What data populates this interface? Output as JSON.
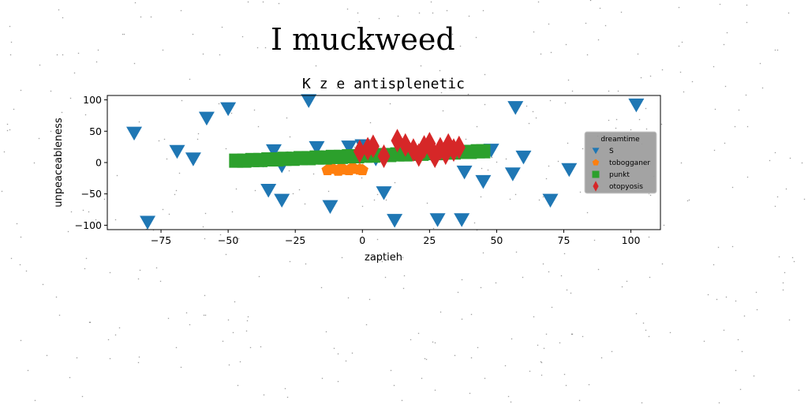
{
  "page": {
    "title": "I muckweed"
  },
  "chart_data": {
    "type": "scatter",
    "title": "K z e antisplenetic",
    "xlabel": "zaptieh",
    "ylabel": "unpeaceableness",
    "xlim": [
      -95,
      111
    ],
    "ylim": [
      -107,
      107
    ],
    "xticks": [
      -75,
      -50,
      -25,
      0,
      25,
      50,
      75,
      100
    ],
    "yticks": [
      -100,
      -50,
      0,
      50,
      100
    ],
    "grid": false,
    "legend": {
      "title": "dreamtime",
      "placement": "right"
    },
    "series": [
      {
        "name": "S",
        "marker": "triangle-down",
        "color": "#1f77b4",
        "points": [
          [
            -85,
            47
          ],
          [
            -80,
            -95
          ],
          [
            -69,
            18
          ],
          [
            -63,
            6
          ],
          [
            -58,
            71
          ],
          [
            -50,
            86
          ],
          [
            -37,
            4
          ],
          [
            -35,
            -44
          ],
          [
            -33,
            19
          ],
          [
            -30,
            -60
          ],
          [
            -30,
            -5
          ],
          [
            -20,
            99
          ],
          [
            -17,
            24
          ],
          [
            -12,
            -70
          ],
          [
            -5,
            25
          ],
          [
            0,
            27
          ],
          [
            5,
            6
          ],
          [
            8,
            -48
          ],
          [
            12,
            -92
          ],
          [
            28,
            -91
          ],
          [
            37,
            -91
          ],
          [
            38,
            -15
          ],
          [
            45,
            -30
          ],
          [
            48,
            20
          ],
          [
            56,
            -18
          ],
          [
            57,
            88
          ],
          [
            60,
            9
          ],
          [
            70,
            -60
          ],
          [
            77,
            -11
          ],
          [
            102,
            92
          ]
        ]
      },
      {
        "name": "tobogganer",
        "marker": "pentagon",
        "color": "#ff7f0e",
        "points": [
          [
            -13,
            -12
          ],
          [
            -11,
            -10
          ],
          [
            -9,
            -13
          ],
          [
            -7,
            -11
          ],
          [
            -5,
            -12
          ],
          [
            -3,
            -10
          ],
          [
            -1,
            -11
          ],
          [
            0,
            -12
          ],
          [
            -12,
            -9
          ],
          [
            -8,
            -9
          ],
          [
            -4,
            -9
          ]
        ]
      },
      {
        "name": "punkt",
        "marker": "square",
        "color": "#2ca02c",
        "points": [
          [
            -47,
            3
          ],
          [
            -44,
            3
          ],
          [
            -41,
            4
          ],
          [
            -38,
            4
          ],
          [
            -35,
            5
          ],
          [
            -32,
            5
          ],
          [
            -29,
            6
          ],
          [
            -26,
            6
          ],
          [
            -23,
            7
          ],
          [
            -20,
            7
          ],
          [
            -17,
            8
          ],
          [
            -14,
            8
          ],
          [
            -11,
            9
          ],
          [
            -8,
            9
          ],
          [
            -5,
            10
          ],
          [
            -2,
            10
          ],
          [
            1,
            11
          ],
          [
            4,
            11
          ],
          [
            7,
            12
          ],
          [
            10,
            12
          ],
          [
            13,
            13
          ],
          [
            16,
            13
          ],
          [
            19,
            14
          ],
          [
            22,
            14
          ],
          [
            25,
            15
          ],
          [
            28,
            15
          ],
          [
            31,
            16
          ],
          [
            34,
            16
          ],
          [
            37,
            17
          ],
          [
            40,
            17
          ],
          [
            43,
            18
          ],
          [
            45,
            18
          ]
        ]
      },
      {
        "name": "otopyosis",
        "marker": "diamond",
        "color": "#d62728",
        "points": [
          [
            -1,
            18
          ],
          [
            2,
            22
          ],
          [
            4,
            26
          ],
          [
            8,
            10
          ],
          [
            13,
            35
          ],
          [
            16,
            28
          ],
          [
            19,
            20
          ],
          [
            21,
            12
          ],
          [
            23,
            25
          ],
          [
            25,
            30
          ],
          [
            26,
            18
          ],
          [
            27,
            10
          ],
          [
            29,
            22
          ],
          [
            31,
            15
          ],
          [
            32,
            28
          ],
          [
            34,
            20
          ],
          [
            36,
            24
          ]
        ]
      }
    ]
  }
}
